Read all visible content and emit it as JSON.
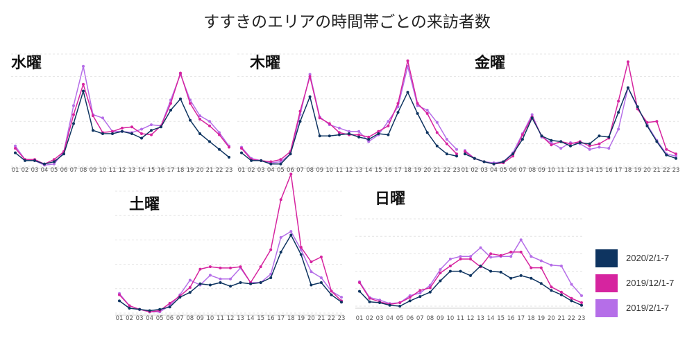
{
  "title": "すすきのエリアの時間帯ごとの来訪者数",
  "colors": {
    "s2020": "#0e3460",
    "s2019dec": "#d6249f",
    "s2019feb": "#b56ee8"
  },
  "legend": [
    {
      "label": "2020/2/1-7",
      "color": "#0e3460"
    },
    {
      "label": "2019/12/1-7",
      "color": "#d6249f"
    },
    {
      "label": "2019/2/1-7",
      "color": "#b56ee8"
    }
  ],
  "chart_data": [
    {
      "type": "line",
      "day": "水曜",
      "x": [
        "01",
        "02",
        "03",
        "04",
        "05",
        "06",
        "07",
        "08",
        "09",
        "10",
        "11",
        "12",
        "13",
        "14",
        "15",
        "16",
        "17",
        "18",
        "19",
        "20",
        "21",
        "22",
        "23"
      ],
      "ylim": [
        0,
        100
      ],
      "series": [
        {
          "key": "s2020",
          "name": "2020/2/1-7",
          "values": [
            12,
            5,
            5,
            2,
            4,
            11,
            38,
            67,
            32,
            29,
            29,
            31,
            29,
            25,
            32,
            35,
            50,
            60,
            41,
            29,
            22,
            15,
            8
          ]
        },
        {
          "key": "s2019dec",
          "name": "2019/12/1-7",
          "values": [
            16,
            6,
            6,
            2,
            6,
            13,
            46,
            73,
            45,
            30,
            31,
            34,
            35,
            29,
            28,
            36,
            56,
            83,
            56,
            42,
            36,
            28,
            17
          ]
        },
        {
          "key": "s2019feb",
          "name": "2019/2/1-7",
          "values": [
            18,
            6,
            5,
            1,
            2,
            13,
            54,
            89,
            46,
            43,
            31,
            31,
            30,
            33,
            37,
            36,
            59,
            82,
            59,
            45,
            40,
            30,
            18
          ]
        }
      ]
    },
    {
      "type": "line",
      "day": "木曜",
      "x": [
        "01",
        "02",
        "03",
        "04",
        "05",
        "06",
        "07",
        "08",
        "09",
        "10",
        "11",
        "12",
        "13",
        "14",
        "15",
        "16",
        "17",
        "18",
        "19",
        "20",
        "21",
        "22",
        "23"
      ],
      "ylim": [
        0,
        100
      ],
      "series": [
        {
          "key": "s2020",
          "name": "2020/2/1-7",
          "values": [
            12,
            5,
            5,
            2,
            2,
            11,
            40,
            62,
            27,
            27,
            28,
            29,
            26,
            24,
            29,
            28,
            48,
            66,
            47,
            30,
            18,
            11,
            9
          ]
        },
        {
          "key": "s2019dec",
          "name": "2019/12/1-7",
          "values": [
            16,
            6,
            5,
            4,
            6,
            13,
            49,
            80,
            43,
            38,
            30,
            28,
            28,
            26,
            31,
            36,
            56,
            94,
            56,
            47,
            30,
            20,
            11
          ]
        },
        {
          "key": "s2019feb",
          "name": "2019/2/1-7",
          "values": [
            17,
            7,
            5,
            3,
            4,
            11,
            46,
            82,
            44,
            37,
            34,
            31,
            31,
            22,
            28,
            40,
            53,
            89,
            54,
            50,
            39,
            24,
            15
          ]
        }
      ]
    },
    {
      "type": "line",
      "day": "金曜",
      "x": [
        "01",
        "02",
        "03",
        "04",
        "05",
        "06",
        "07",
        "08",
        "09",
        "10",
        "11",
        "12",
        "13",
        "14",
        "15",
        "16",
        "17",
        "18",
        "19",
        "20",
        "21",
        "22",
        "23"
      ],
      "ylim": [
        0,
        100
      ],
      "series": [
        {
          "key": "s2020",
          "name": "2020/2/1-7",
          "values": [
            11,
            7,
            4,
            2,
            4,
            11,
            24,
            43,
            27,
            23,
            22,
            18,
            21,
            20,
            27,
            26,
            48,
            70,
            53,
            36,
            22,
            10,
            7
          ]
        },
        {
          "key": "s2019dec",
          "name": "2019/12/1-7",
          "values": [
            13,
            7,
            4,
            2,
            3,
            9,
            28,
            44,
            27,
            19,
            22,
            20,
            22,
            18,
            20,
            25,
            58,
            93,
            51,
            39,
            40,
            15,
            11
          ]
        },
        {
          "key": "s2019feb",
          "name": "2019/2/1-7",
          "values": [
            14,
            7,
            4,
            3,
            4,
            12,
            29,
            46,
            26,
            21,
            16,
            21,
            20,
            15,
            17,
            16,
            33,
            70,
            52,
            37,
            23,
            11,
            9
          ]
        }
      ]
    },
    {
      "type": "line",
      "day": "土曜",
      "x": [
        "01",
        "02",
        "03",
        "04",
        "05",
        "06",
        "07",
        "08",
        "09",
        "10",
        "11",
        "12",
        "13",
        "14",
        "15",
        "16",
        "17",
        "18",
        "19",
        "20",
        "21",
        "22",
        "23"
      ],
      "ylim": [
        0,
        100
      ],
      "series": [
        {
          "key": "s2020",
          "name": "2020/2/1-7",
          "values": [
            10,
            4,
            3,
            2,
            3,
            5,
            13,
            17,
            24,
            23,
            25,
            22,
            25,
            24,
            25,
            29,
            50,
            64,
            48,
            23,
            25,
            15,
            9
          ]
        },
        {
          "key": "s2019dec",
          "name": "2019/12/1-7",
          "values": [
            15,
            6,
            3,
            1,
            2,
            8,
            14,
            21,
            36,
            38,
            37,
            37,
            38,
            25,
            38,
            52,
            93,
            114,
            54,
            42,
            46,
            18,
            10
          ]
        },
        {
          "key": "s2019feb",
          "name": "2019/2/1-7",
          "values": [
            16,
            6,
            3,
            1,
            1,
            6,
            15,
            27,
            23,
            31,
            28,
            28,
            37,
            25,
            25,
            32,
            62,
            67,
            52,
            34,
            29,
            18,
            13
          ]
        }
      ]
    },
    {
      "type": "line",
      "day": "日曜",
      "x": [
        "01",
        "02",
        "03",
        "04",
        "05",
        "06",
        "07",
        "08",
        "09",
        "10",
        "11",
        "12",
        "13",
        "14",
        "15",
        "16",
        "17",
        "18",
        "19",
        "20",
        "21",
        "22",
        "23"
      ],
      "ylim": [
        0,
        100
      ],
      "series": [
        {
          "key": "s2020",
          "name": "2020/2/1-7",
          "values": [
            17,
            5,
            4,
            1,
            0,
            6,
            11,
            16,
            29,
            40,
            40,
            35,
            46,
            40,
            39,
            32,
            35,
            32,
            26,
            18,
            13,
            6,
            1
          ]
        },
        {
          "key": "s2019dec",
          "name": "2019/12/1-7",
          "values": [
            27,
            9,
            5,
            2,
            4,
            10,
            18,
            21,
            38,
            46,
            54,
            54,
            45,
            60,
            58,
            62,
            62,
            44,
            44,
            22,
            16,
            9,
            4
          ]
        },
        {
          "key": "s2019feb",
          "name": "2019/2/1-7",
          "values": [
            28,
            10,
            7,
            3,
            4,
            12,
            15,
            24,
            42,
            54,
            57,
            57,
            67,
            56,
            57,
            57,
            76,
            57,
            52,
            47,
            46,
            25,
            12
          ]
        }
      ]
    }
  ]
}
